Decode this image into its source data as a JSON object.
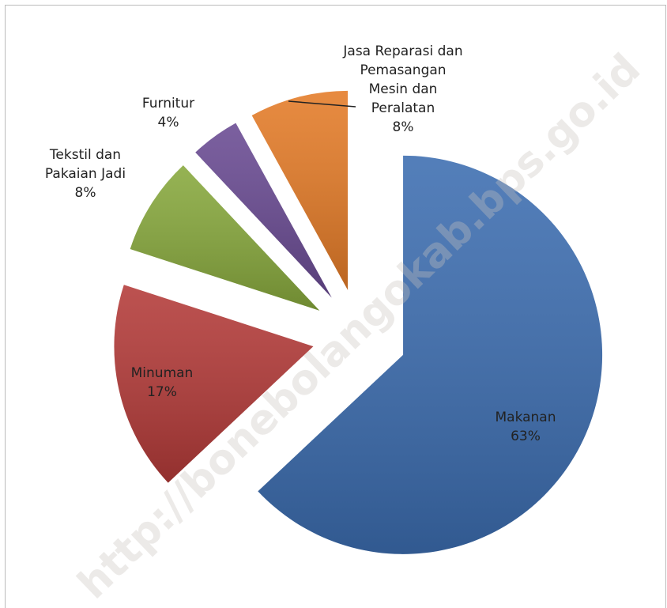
{
  "chart_data": {
    "type": "pie",
    "categories": [
      "Makanan",
      "Minuman",
      "Tekstil dan Pakaian Jadi",
      "Furnitur",
      "Jasa Reparasi dan Pemasangan Mesin dan Peralatan"
    ],
    "values": [
      63,
      17,
      8,
      4,
      8
    ],
    "value_labels": [
      "63%",
      "17%",
      "8%",
      "4%",
      "8%"
    ],
    "colors": [
      "#3c6db0",
      "#b33a38",
      "#87a83c",
      "#694a92",
      "#e47b27"
    ],
    "watermark": "http://bonebolangokab.bps.go.id"
  }
}
